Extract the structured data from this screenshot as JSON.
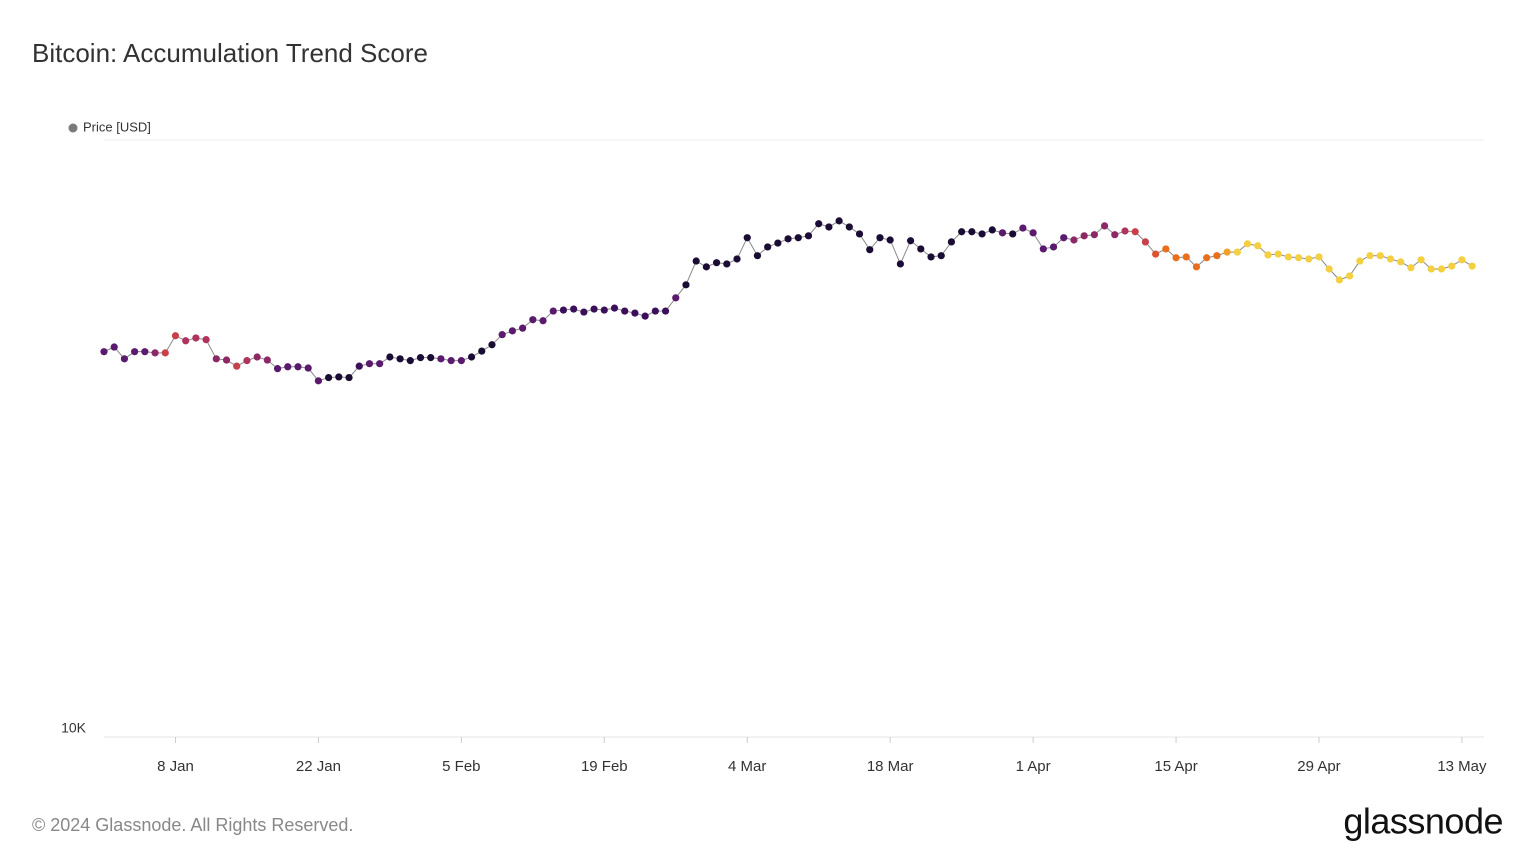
{
  "chart_data": {
    "type": "line",
    "title": "Bitcoin: Accumulation Trend Score",
    "log_scale": true,
    "ylim": [
      10000,
      100000
    ],
    "yticks": [
      {
        "value": 10000,
        "label": "10K"
      }
    ],
    "x": [
      "1 Jan",
      "2 Jan",
      "3 Jan",
      "4 Jan",
      "5 Jan",
      "6 Jan",
      "7 Jan",
      "8 Jan",
      "9 Jan",
      "10 Jan",
      "11 Jan",
      "12 Jan",
      "13 Jan",
      "14 Jan",
      "15 Jan",
      "16 Jan",
      "17 Jan",
      "18 Jan",
      "19 Jan",
      "20 Jan",
      "21 Jan",
      "22 Jan",
      "23 Jan",
      "24 Jan",
      "25 Jan",
      "26 Jan",
      "27 Jan",
      "28 Jan",
      "29 Jan",
      "30 Jan",
      "31 Jan",
      "1 Feb",
      "2 Feb",
      "3 Feb",
      "4 Feb",
      "5 Feb",
      "6 Feb",
      "7 Feb",
      "8 Feb",
      "9 Feb",
      "10 Feb",
      "11 Feb",
      "12 Feb",
      "13 Feb",
      "14 Feb",
      "15 Feb",
      "16 Feb",
      "17 Feb",
      "18 Feb",
      "19 Feb",
      "20 Feb",
      "21 Feb",
      "22 Feb",
      "23 Feb",
      "24 Feb",
      "25 Feb",
      "26 Feb",
      "27 Feb",
      "28 Feb",
      "29 Feb",
      "1 Mar",
      "2 Mar",
      "3 Mar",
      "4 Mar",
      "5 Mar",
      "6 Mar",
      "7 Mar",
      "8 Mar",
      "9 Mar",
      "10 Mar",
      "11 Mar",
      "12 Mar",
      "13 Mar",
      "14 Mar",
      "15 Mar",
      "16 Mar",
      "17 Mar",
      "18 Mar",
      "19 Mar",
      "20 Mar",
      "21 Mar",
      "22 Mar",
      "23 Mar",
      "24 Mar",
      "25 Mar",
      "26 Mar",
      "27 Mar",
      "28 Mar",
      "29 Mar",
      "30 Mar",
      "31 Mar",
      "1 Apr",
      "2 Apr",
      "3 Apr",
      "4 Apr",
      "5 Apr",
      "6 Apr",
      "7 Apr",
      "8 Apr",
      "9 Apr",
      "10 Apr",
      "11 Apr",
      "12 Apr",
      "13 Apr",
      "14 Apr",
      "15 Apr",
      "16 Apr",
      "17 Apr",
      "18 Apr",
      "19 Apr",
      "20 Apr",
      "21 Apr",
      "22 Apr",
      "23 Apr",
      "24 Apr",
      "25 Apr",
      "26 Apr",
      "27 Apr",
      "28 Apr",
      "29 Apr",
      "30 Apr",
      "1 May",
      "2 May",
      "3 May",
      "4 May",
      "5 May",
      "6 May",
      "7 May",
      "8 May",
      "9 May",
      "10 May",
      "11 May",
      "12 May",
      "13 May",
      "14 May"
    ],
    "xticks": [
      "8 Jan",
      "22 Jan",
      "5 Feb",
      "19 Feb",
      "4 Mar",
      "18 Mar",
      "1 Apr",
      "15 Apr",
      "29 Apr",
      "13 May"
    ],
    "series": [
      {
        "name": "Price [USD]",
        "color": "#7a7a7a",
        "line_color": "#8a8a8a",
        "values": [
          44200,
          45000,
          43000,
          44200,
          44200,
          44000,
          44000,
          47000,
          46100,
          46600,
          46300,
          43000,
          42800,
          41800,
          42700,
          43300,
          42800,
          41400,
          41700,
          41700,
          41500,
          39500,
          40000,
          40100,
          40000,
          41800,
          42200,
          42200,
          43300,
          43000,
          42700,
          43200,
          43200,
          43000,
          42700,
          42700,
          43300,
          44300,
          45400,
          47200,
          47900,
          48400,
          50000,
          49800,
          51700,
          51900,
          52100,
          51500,
          52100,
          51900,
          52300,
          51700,
          51300,
          50700,
          51700,
          51700,
          54400,
          57200,
          62700,
          61300,
          62300,
          62000,
          63200,
          68600,
          64000,
          66200,
          67200,
          68300,
          68600,
          69100,
          72400,
          71500,
          73200,
          71500,
          69600,
          65500,
          68600,
          68000,
          62000,
          67800,
          65700,
          63700,
          64000,
          67500,
          70200,
          70200,
          69600,
          70700,
          69900,
          69600,
          71200,
          69900,
          65700,
          66200,
          68600,
          68000,
          69100,
          69400,
          71800,
          69400,
          70400,
          70200,
          67500,
          64400,
          65700,
          63500,
          63700,
          61300,
          63500,
          64000,
          64900,
          64900,
          67000,
          66500,
          64200,
          64400,
          63700,
          63500,
          63200,
          63700,
          60800,
          58300,
          59200,
          62700,
          64000,
          64000,
          63200,
          62500,
          61100,
          63000,
          60800,
          60800,
          61500,
          63000,
          61500
        ],
        "colors": [
          "#5a1a6e",
          "#5a1a6e",
          "#5a1a6e",
          "#5a1a6e",
          "#5a1a6e",
          "#8e2766",
          "#c7414a",
          "#c7414a",
          "#b0335d",
          "#b0335d",
          "#b0335d",
          "#8e2766",
          "#8e2766",
          "#c7414a",
          "#b0335d",
          "#8e2766",
          "#8e2766",
          "#5a1a6e",
          "#5a1a6e",
          "#5a1a6e",
          "#5a1a6e",
          "#5a1a6e",
          "#1b0c36",
          "#1b0c36",
          "#1b0c36",
          "#3b0f5a",
          "#5a1a6e",
          "#5a1a6e",
          "#1b0c36",
          "#1b0c36",
          "#1b0c36",
          "#1b0c36",
          "#1b0c36",
          "#5a1a6e",
          "#5a1a6e",
          "#5a1a6e",
          "#1b0c36",
          "#1b0c36",
          "#1b0c36",
          "#5a1a6e",
          "#5a1a6e",
          "#5a1a6e",
          "#5a1a6e",
          "#5a1a6e",
          "#5a1a6e",
          "#3b0f5a",
          "#3b0f5a",
          "#3b0f5a",
          "#3b0f5a",
          "#3b0f5a",
          "#3b0f5a",
          "#3b0f5a",
          "#3b0f5a",
          "#3b0f5a",
          "#3b0f5a",
          "#3b0f5a",
          "#5a1a6e",
          "#1b0c36",
          "#1b0c36",
          "#1b0c36",
          "#1b0c36",
          "#1b0c36",
          "#1b0c36",
          "#1b0c36",
          "#1b0c36",
          "#1b0c36",
          "#1b0c36",
          "#1b0c36",
          "#1b0c36",
          "#1b0c36",
          "#1b0c36",
          "#1b0c36",
          "#1b0c36",
          "#1b0c36",
          "#1b0c36",
          "#1b0c36",
          "#1b0c36",
          "#1b0c36",
          "#1b0c36",
          "#1b0c36",
          "#1b0c36",
          "#1b0c36",
          "#1b0c36",
          "#1b0c36",
          "#1b0c36",
          "#1b0c36",
          "#1b0c36",
          "#1b0c36",
          "#5a1a6e",
          "#1b0c36",
          "#5a1a6e",
          "#5a1a6e",
          "#5a1a6e",
          "#5a1a6e",
          "#5a1a6e",
          "#8e2766",
          "#8e2766",
          "#8e2766",
          "#8e2766",
          "#8e2766",
          "#b0335d",
          "#c7414a",
          "#c7414a",
          "#dc5532",
          "#ea6e1b",
          "#ea6e1b",
          "#ea6e1b",
          "#ea6e1b",
          "#ea6e1b",
          "#ea6e1b",
          "#f2a126",
          "#f4cf3f",
          "#f4cf3f",
          "#f4cf3f",
          "#f4cf3f",
          "#f4cf3f",
          "#f4cf3f",
          "#f4cf3f",
          "#f4cf3f",
          "#f4cf3f",
          "#f4cf3f",
          "#f4cf3f",
          "#f4cf3f",
          "#f4cf3f",
          "#f4cf3f",
          "#f4cf3f",
          "#f4cf3f",
          "#f4cf3f",
          "#f4cf3f",
          "#f4cf3f",
          "#f4cf3f",
          "#f4cf3f",
          "#f4cf3f",
          "#f4cf3f",
          "#f4cf3f"
        ]
      }
    ],
    "footer": "© 2024 Glassnode. All Rights Reserved.",
    "logo": "glassnode"
  }
}
